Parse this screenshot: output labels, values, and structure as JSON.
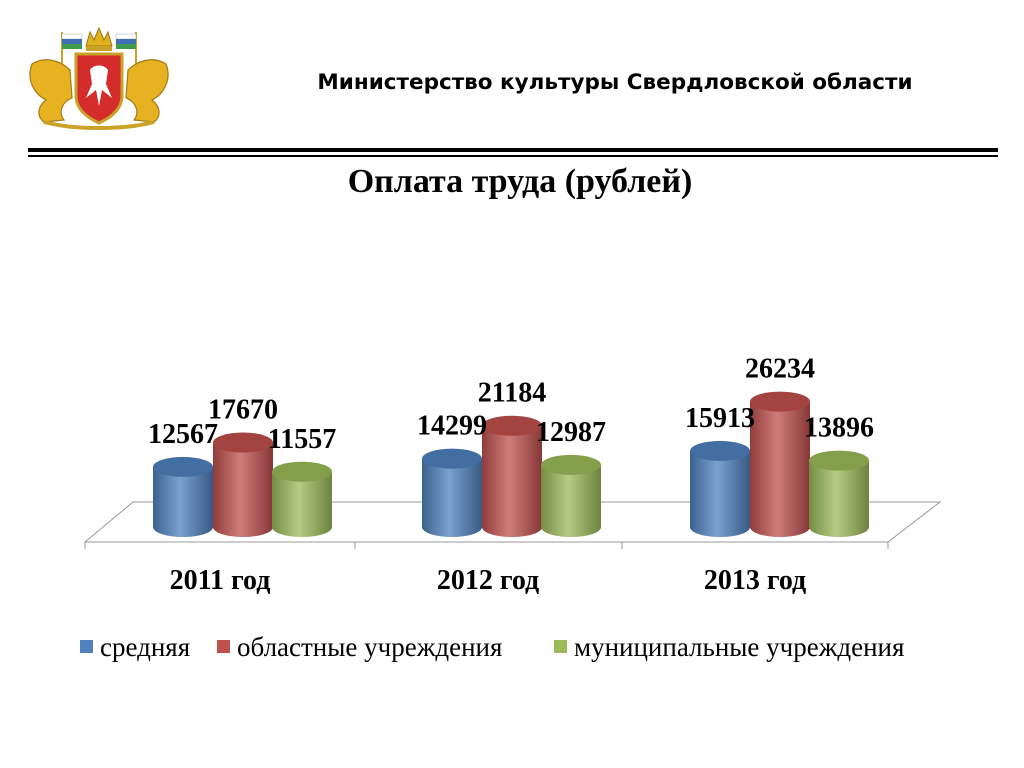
{
  "header": {
    "ministry": "Министерство культуры Свердловской области"
  },
  "emblem": {
    "icon": "sverdlovsk-oblast-coat-of-arms"
  },
  "colors": {
    "series": [
      "#4F81BD",
      "#C0504D",
      "#9BBB59"
    ]
  },
  "chart_data": {
    "type": "bar",
    "title": "Оплата труда (рублей)",
    "xlabel": "",
    "ylabel": "",
    "categories": [
      "2011 год",
      "2012 год",
      "2013 год"
    ],
    "series": [
      {
        "name": "средняя",
        "values": [
          12567,
          14299,
          15913
        ]
      },
      {
        "name": "областные учреждения",
        "values": [
          17670,
          21184,
          26234
        ]
      },
      {
        "name": "муниципальные учреждения",
        "values": [
          11557,
          12987,
          13896
        ]
      }
    ],
    "ylim": [
      0,
      27000
    ],
    "grid": false,
    "legend": "bottom",
    "style": "3d-cylinder"
  }
}
